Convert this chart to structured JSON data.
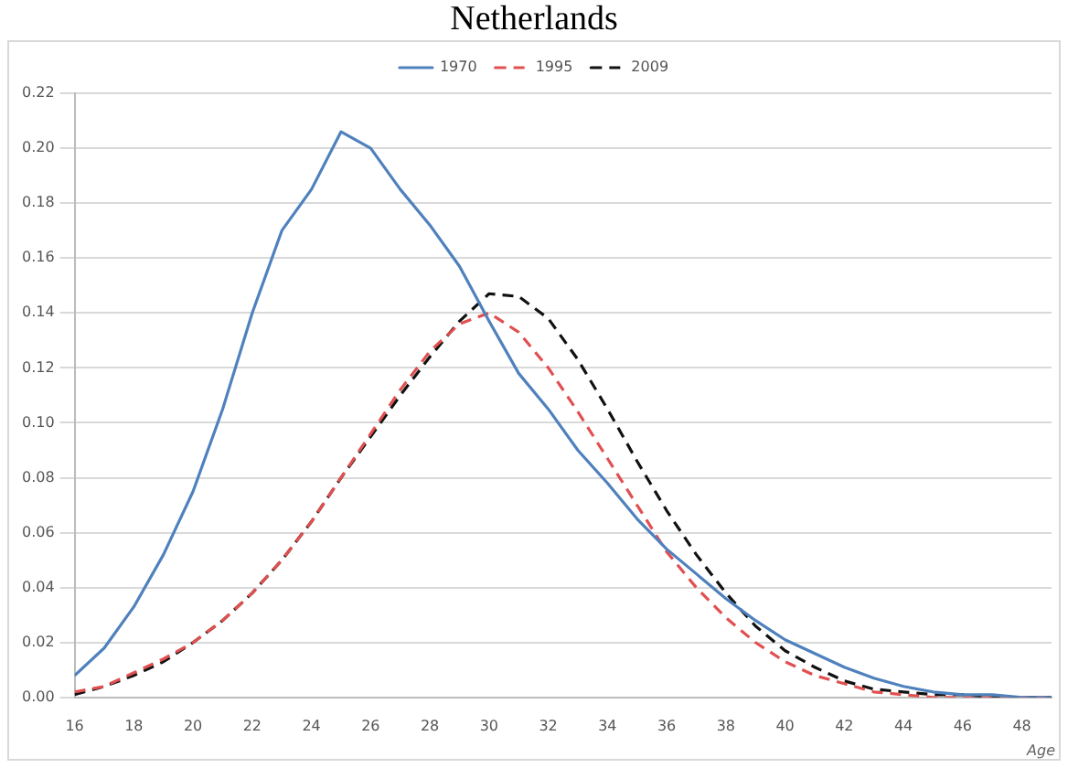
{
  "chart_data": {
    "type": "line",
    "title": "Netherlands",
    "xlabel": "Age",
    "x": [
      16,
      17,
      18,
      19,
      20,
      21,
      22,
      23,
      24,
      25,
      26,
      27,
      28,
      29,
      30,
      31,
      32,
      33,
      34,
      35,
      36,
      37,
      38,
      39,
      40,
      41,
      42,
      43,
      44,
      45,
      46,
      47,
      48,
      49
    ],
    "series": [
      {
        "name": "1970",
        "color": "#4f81bd",
        "line_style": "solid",
        "values": [
          0.008,
          0.018,
          0.033,
          0.052,
          0.075,
          0.105,
          0.14,
          0.17,
          0.185,
          0.206,
          0.2,
          0.185,
          0.172,
          0.157,
          0.137,
          0.118,
          0.105,
          0.09,
          0.078,
          0.065,
          0.054,
          0.045,
          0.036,
          0.028,
          0.021,
          0.016,
          0.011,
          0.007,
          0.004,
          0.002,
          0.001,
          0.001,
          0,
          0
        ]
      },
      {
        "name": "1995",
        "color": "#e05050",
        "line_style": "dashed",
        "values": [
          0.002,
          0.004,
          0.009,
          0.014,
          0.02,
          0.028,
          0.038,
          0.05,
          0.064,
          0.08,
          0.096,
          0.112,
          0.126,
          0.136,
          0.14,
          0.133,
          0.12,
          0.104,
          0.087,
          0.07,
          0.053,
          0.04,
          0.029,
          0.02,
          0.013,
          0.008,
          0.005,
          0.002,
          0.001,
          0,
          0,
          0,
          0,
          0
        ]
      },
      {
        "name": "2009",
        "color": "#111111",
        "line_style": "dashed",
        "values": [
          0.001,
          0.004,
          0.008,
          0.013,
          0.02,
          0.028,
          0.038,
          0.05,
          0.064,
          0.08,
          0.095,
          0.11,
          0.124,
          0.137,
          0.147,
          0.146,
          0.138,
          0.123,
          0.105,
          0.086,
          0.068,
          0.052,
          0.038,
          0.026,
          0.017,
          0.011,
          0.006,
          0.003,
          0.002,
          0.001,
          0.001,
          0,
          0,
          0
        ]
      }
    ],
    "xlim": [
      16,
      49
    ],
    "xticks": [
      16,
      18,
      20,
      22,
      24,
      26,
      28,
      30,
      32,
      34,
      36,
      38,
      40,
      42,
      44,
      46,
      48
    ],
    "ylim": [
      0,
      0.22
    ],
    "yticks": [
      {
        "value": 0,
        "label": "0.00"
      },
      {
        "value": 0.02,
        "label": "0.02"
      },
      {
        "value": 0.04,
        "label": "0.04"
      },
      {
        "value": 0.06,
        "label": "0.06"
      },
      {
        "value": 0.08,
        "label": "0.08"
      },
      {
        "value": 0.1,
        "label": "0.10"
      },
      {
        "value": 0.12,
        "label": "0.12"
      },
      {
        "value": 0.14,
        "label": "0.14"
      },
      {
        "value": 0.16,
        "label": "0.16"
      },
      {
        "value": 0.18,
        "label": "0.18"
      },
      {
        "value": 0.2,
        "label": "0.20"
      },
      {
        "value": 0.22,
        "label": "0.22"
      }
    ],
    "grid": "y",
    "legend": "top",
    "marker": "none"
  }
}
